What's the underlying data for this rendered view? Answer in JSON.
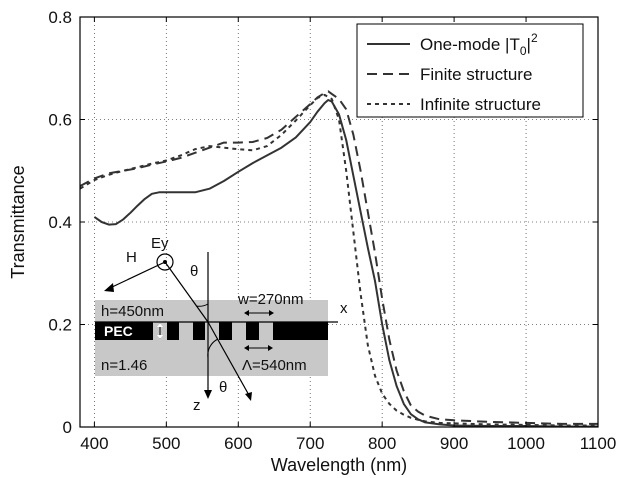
{
  "chart_data": {
    "type": "line",
    "xlabel": "Wavelength (nm)",
    "ylabel": "Transmittance",
    "xlim": [
      380,
      1100
    ],
    "ylim": [
      0,
      0.8
    ],
    "xticks": [
      "400",
      "500",
      "600",
      "700",
      "800",
      "900",
      "1000",
      "1100"
    ],
    "yticks": [
      "0",
      "0.2",
      "0.4",
      "0.6",
      "0.8"
    ],
    "grid": "dotted",
    "legend_position": "top-right",
    "legend": [
      {
        "label_main": "One-mode |T",
        "label_sub": "0",
        "label_end": "|",
        "label_sup": "2",
        "style": "solid"
      },
      {
        "label": "Finite structure",
        "style": "dashed"
      },
      {
        "label": "Infinite structure",
        "style": "dotted"
      }
    ],
    "series": [
      {
        "name": "One-mode |T0|2",
        "style": "solid",
        "color": "#333333",
        "x": [
          400,
          410,
          420,
          430,
          440,
          450,
          460,
          470,
          480,
          490,
          500,
          520,
          540,
          560,
          580,
          600,
          620,
          640,
          660,
          680,
          700,
          710,
          720,
          725,
          730,
          740,
          750,
          760,
          770,
          780,
          790,
          800,
          810,
          820,
          830,
          840,
          850,
          860,
          880,
          900,
          950,
          1000,
          1050,
          1100
        ],
        "y": [
          0.41,
          0.4,
          0.395,
          0.396,
          0.405,
          0.418,
          0.432,
          0.445,
          0.455,
          0.458,
          0.458,
          0.458,
          0.458,
          0.465,
          0.48,
          0.498,
          0.515,
          0.53,
          0.545,
          0.565,
          0.595,
          0.615,
          0.632,
          0.638,
          0.635,
          0.61,
          0.56,
          0.49,
          0.42,
          0.35,
          0.285,
          0.2,
          0.13,
          0.08,
          0.045,
          0.025,
          0.015,
          0.009,
          0.005,
          0.003,
          0.002,
          0.002,
          0.001,
          0.001
        ]
      },
      {
        "name": "Finite structure",
        "style": "dashed",
        "color": "#333333",
        "x": [
          380,
          400,
          420,
          440,
          460,
          480,
          500,
          520,
          540,
          560,
          580,
          600,
          620,
          640,
          660,
          680,
          700,
          710,
          720,
          725,
          730,
          740,
          750,
          760,
          770,
          780,
          790,
          800,
          810,
          820,
          830,
          840,
          850,
          860,
          880,
          900,
          950,
          1000,
          1050,
          1100
        ],
        "y": [
          0.47,
          0.485,
          0.495,
          0.5,
          0.505,
          0.512,
          0.518,
          0.525,
          0.535,
          0.545,
          0.555,
          0.555,
          0.556,
          0.564,
          0.58,
          0.605,
          0.63,
          0.643,
          0.652,
          0.655,
          0.65,
          0.64,
          0.62,
          0.57,
          0.5,
          0.42,
          0.34,
          0.25,
          0.17,
          0.11,
          0.07,
          0.042,
          0.03,
          0.022,
          0.015,
          0.013,
          0.01,
          0.008,
          0.006,
          0.006
        ]
      },
      {
        "name": "Infinite structure",
        "style": "dotted",
        "color": "#333333",
        "x": [
          380,
          400,
          420,
          440,
          460,
          480,
          500,
          520,
          540,
          560,
          580,
          600,
          620,
          640,
          660,
          680,
          700,
          710,
          720,
          730,
          740,
          750,
          760,
          770,
          780,
          790,
          800,
          810,
          820,
          830,
          840,
          850,
          860,
          880,
          900,
          950,
          1000,
          1050,
          1100
        ],
        "y": [
          0.465,
          0.482,
          0.492,
          0.5,
          0.507,
          0.514,
          0.52,
          0.53,
          0.542,
          0.548,
          0.545,
          0.542,
          0.54,
          0.548,
          0.57,
          0.598,
          0.628,
          0.642,
          0.648,
          0.64,
          0.6,
          0.5,
          0.38,
          0.26,
          0.16,
          0.1,
          0.065,
          0.045,
          0.032,
          0.024,
          0.018,
          0.014,
          0.011,
          0.008,
          0.007,
          0.005,
          0.004,
          0.003,
          0.003
        ]
      }
    ],
    "inset": {
      "labels": {
        "ey": "Ey",
        "h_field": "H",
        "theta_top": "θ",
        "theta_bottom": "θ",
        "height": "h=450nm",
        "width": "w=270nm",
        "x_axis": "x",
        "z_axis": "z",
        "pec": "PEC",
        "index": "n=1.46",
        "period": "Λ=540nm"
      }
    }
  }
}
